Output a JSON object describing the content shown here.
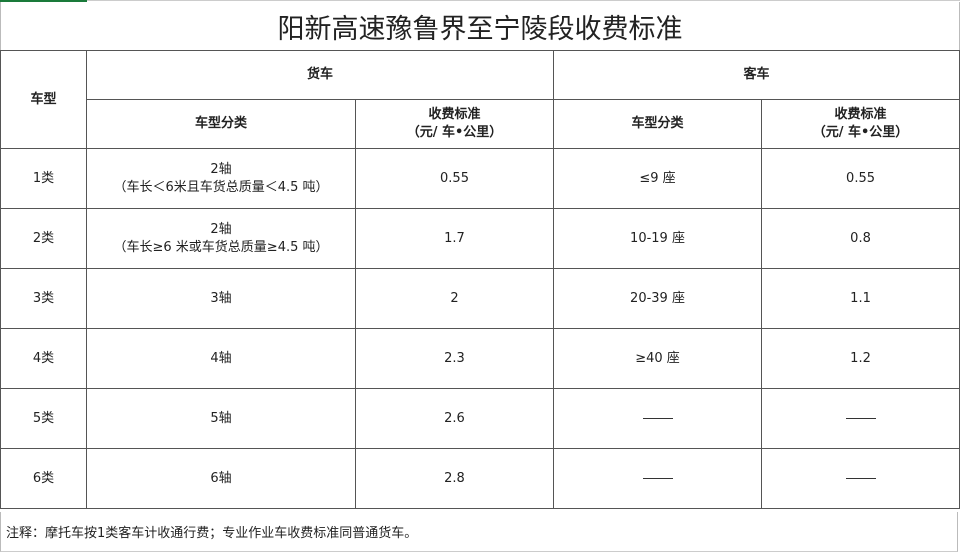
{
  "title": "阳新高速豫鲁界至宁陵段收费标准",
  "header": {
    "vehicle_type": "车型",
    "truck": "货车",
    "bus": "客车",
    "truck_class": "车型分类",
    "truck_rate": "收费标准",
    "truck_rate_unit": "（元/ 车•公里）",
    "bus_class": "车型分类",
    "bus_rate": "收费标准",
    "bus_rate_unit": "（元/ 车•公里）"
  },
  "rows": [
    {
      "type": "1类",
      "truck_class": "2轴",
      "truck_note": "（车长＜6米且车货总质量＜4.5 吨）",
      "truck_rate": "0.55",
      "bus_class": "≤9 座",
      "bus_rate": "0.55"
    },
    {
      "type": "2类",
      "truck_class": "2轴",
      "truck_note": "（车长≥6 米或车货总质量≥4.5 吨）",
      "truck_rate": "1.7",
      "bus_class": "10-19 座",
      "bus_rate": "0.8"
    },
    {
      "type": "3类",
      "truck_class": "3轴",
      "truck_note": "",
      "truck_rate": "2",
      "bus_class": "20-39 座",
      "bus_rate": "1.1"
    },
    {
      "type": "4类",
      "truck_class": "4轴",
      "truck_note": "",
      "truck_rate": "2.3",
      "bus_class": "≥40 座",
      "bus_rate": "1.2"
    },
    {
      "type": "5类",
      "truck_class": "5轴",
      "truck_note": "",
      "truck_rate": "2.6",
      "bus_class": "",
      "bus_rate": ""
    },
    {
      "type": "6类",
      "truck_class": "6轴",
      "truck_note": "",
      "truck_rate": "2.8",
      "bus_class": "",
      "bus_rate": ""
    }
  ],
  "note": "注释：摩托车按1类客车计收通行费；专业作业车收费标准同普通货车。",
  "colors": {
    "accent": "#1a7a3a",
    "border": "#555555"
  }
}
